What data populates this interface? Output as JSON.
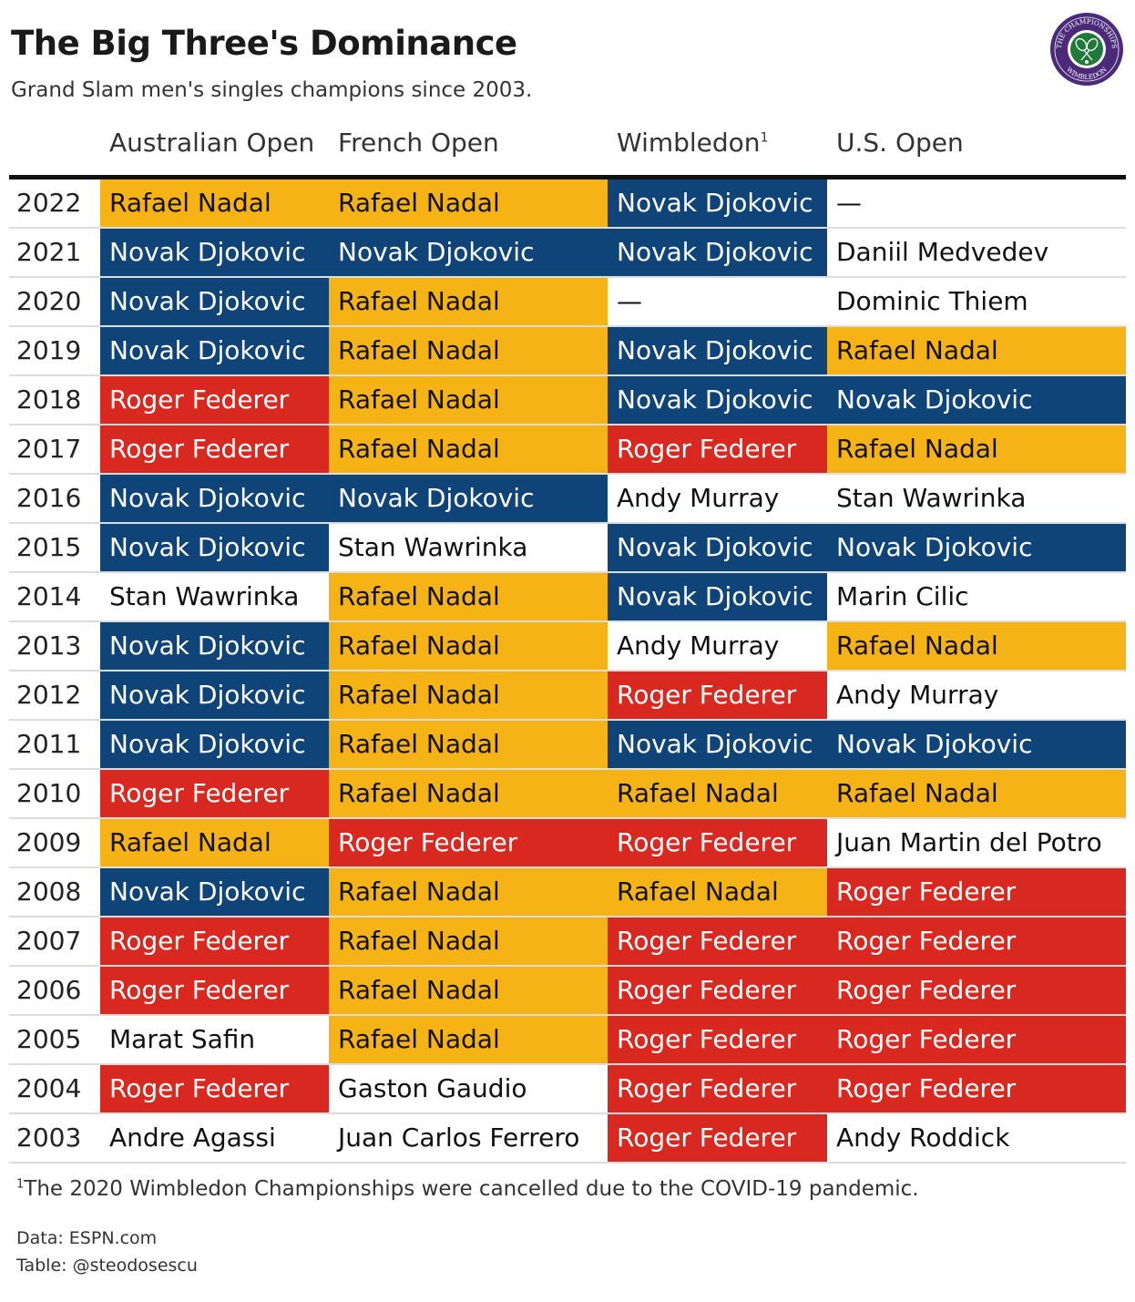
{
  "title": "The Big Three's Dominance",
  "subtitle": "Grand Slam men's singles champions since 2003.",
  "logo": {
    "icon": "wimbledon-championships-logo-icon",
    "text_top": "THE CHAMPIONSHIPS",
    "text_bottom": "WIMBLEDON"
  },
  "colors": {
    "djokovic": "#0e4477",
    "nadal": "#f5b316",
    "federer": "#d8281f",
    "other": "#ffffff"
  },
  "columns": [
    "Australian Open",
    "French Open",
    "Wimbledon",
    "U.S. Open"
  ],
  "wimbledon_footnote_mark": "1",
  "footnote_mark": "1",
  "footnote": "The 2020 Wimbledon Championships were cancelled due to the COVID-19 pandemic.",
  "source": "Data: ESPN.com",
  "credit": "Table: @steodosescu",
  "chart_data": {
    "type": "table",
    "title": "The Big Three's Dominance",
    "subtitle": "Grand Slam men's singles champions since 2003.",
    "columns": [
      "Australian Open",
      "French Open",
      "Wimbledon",
      "U.S. Open"
    ],
    "rows": [
      {
        "year": "2022",
        "champions": [
          "Rafael Nadal",
          "Rafael Nadal",
          "Novak Djokovic",
          "—"
        ]
      },
      {
        "year": "2021",
        "champions": [
          "Novak Djokovic",
          "Novak Djokovic",
          "Novak Djokovic",
          "Daniil Medvedev"
        ]
      },
      {
        "year": "2020",
        "champions": [
          "Novak Djokovic",
          "Rafael Nadal",
          "—",
          "Dominic Thiem"
        ]
      },
      {
        "year": "2019",
        "champions": [
          "Novak Djokovic",
          "Rafael Nadal",
          "Novak Djokovic",
          "Rafael Nadal"
        ]
      },
      {
        "year": "2018",
        "champions": [
          "Roger Federer",
          "Rafael Nadal",
          "Novak Djokovic",
          "Novak Djokovic"
        ]
      },
      {
        "year": "2017",
        "champions": [
          "Roger Federer",
          "Rafael Nadal",
          "Roger Federer",
          "Rafael Nadal"
        ]
      },
      {
        "year": "2016",
        "champions": [
          "Novak Djokovic",
          "Novak Djokovic",
          "Andy Murray",
          "Stan Wawrinka"
        ]
      },
      {
        "year": "2015",
        "champions": [
          "Novak Djokovic",
          "Stan Wawrinka",
          "Novak Djokovic",
          "Novak Djokovic"
        ]
      },
      {
        "year": "2014",
        "champions": [
          "Stan Wawrinka",
          "Rafael Nadal",
          "Novak Djokovic",
          "Marin Cilic"
        ]
      },
      {
        "year": "2013",
        "champions": [
          "Novak Djokovic",
          "Rafael Nadal",
          "Andy Murray",
          "Rafael Nadal"
        ]
      },
      {
        "year": "2012",
        "champions": [
          "Novak Djokovic",
          "Rafael Nadal",
          "Roger Federer",
          "Andy Murray"
        ]
      },
      {
        "year": "2011",
        "champions": [
          "Novak Djokovic",
          "Rafael Nadal",
          "Novak Djokovic",
          "Novak Djokovic"
        ]
      },
      {
        "year": "2010",
        "champions": [
          "Roger Federer",
          "Rafael Nadal",
          "Rafael Nadal",
          "Rafael Nadal"
        ]
      },
      {
        "year": "2009",
        "champions": [
          "Rafael Nadal",
          "Roger Federer",
          "Roger Federer",
          "Juan Martin del Potro"
        ]
      },
      {
        "year": "2008",
        "champions": [
          "Novak Djokovic",
          "Rafael Nadal",
          "Rafael Nadal",
          "Roger Federer"
        ]
      },
      {
        "year": "2007",
        "champions": [
          "Roger Federer",
          "Rafael Nadal",
          "Roger Federer",
          "Roger Federer"
        ]
      },
      {
        "year": "2006",
        "champions": [
          "Roger Federer",
          "Rafael Nadal",
          "Roger Federer",
          "Roger Federer"
        ]
      },
      {
        "year": "2005",
        "champions": [
          "Marat Safin",
          "Rafael Nadal",
          "Roger Federer",
          "Roger Federer"
        ]
      },
      {
        "year": "2004",
        "champions": [
          "Roger Federer",
          "Gaston Gaudio",
          "Roger Federer",
          "Roger Federer"
        ]
      },
      {
        "year": "2003",
        "champions": [
          "Andre Agassi",
          "Juan Carlos Ferrero",
          "Roger Federer",
          "Andy Roddick"
        ]
      }
    ]
  }
}
